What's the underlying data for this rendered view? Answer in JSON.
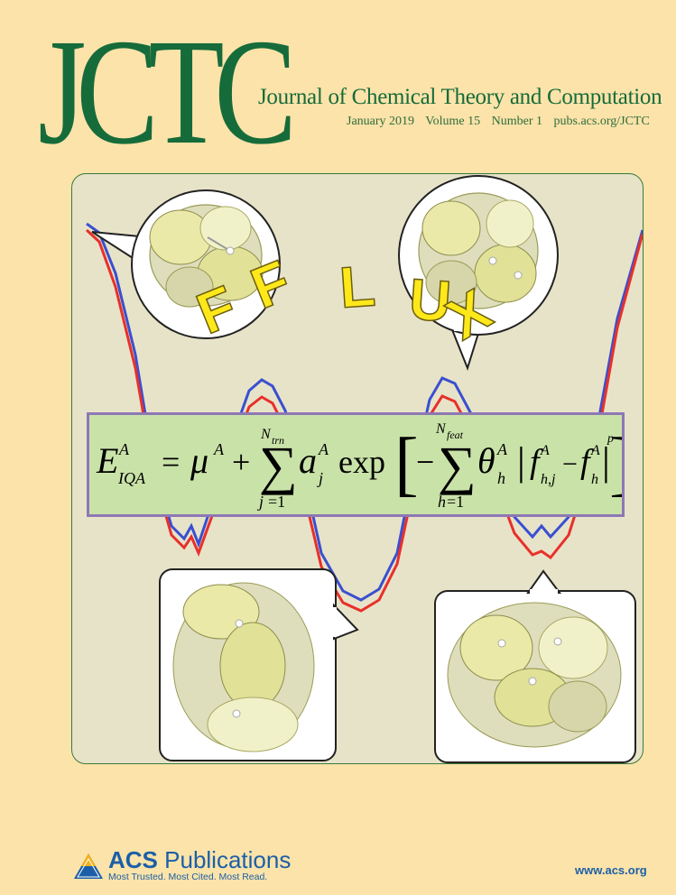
{
  "cover": {
    "logo": "JCTC",
    "journal_title": "Journal of Chemical Theory and Computation",
    "issue": {
      "date": "January 2019",
      "volume": "Volume 15",
      "number": "Number 1",
      "url": "pubs.acs.org/JCTC"
    },
    "art_title_letters": [
      "F",
      "F",
      "L",
      "U",
      "X"
    ],
    "equation": "E^A_IQA = μ^A + Σ_{j=1}^{N_trn} a^A_j exp[ −Σ_{h=1}^{N_feat} θ^A_h |f^A_{h,j} − f^A_h|^{p^A_h} ]",
    "colors": {
      "background": "#fbe3a9",
      "journal_green": "#166b3a",
      "panel_border": "#3b7a3b",
      "panel_bg": "#e7e3c9",
      "curve_blue": "#3a4fd0",
      "curve_red": "#e8302a",
      "equation_box": "#c9e2a8",
      "equation_border": "#8e77b5",
      "letters": "#ffe81a",
      "acs_blue": "#1c5fa8"
    }
  },
  "footer": {
    "publisher_brand": "ACS",
    "publisher_name": "Publications",
    "tagline": "Most Trusted. Most Cited. Most Read.",
    "website": "www.acs.org"
  }
}
